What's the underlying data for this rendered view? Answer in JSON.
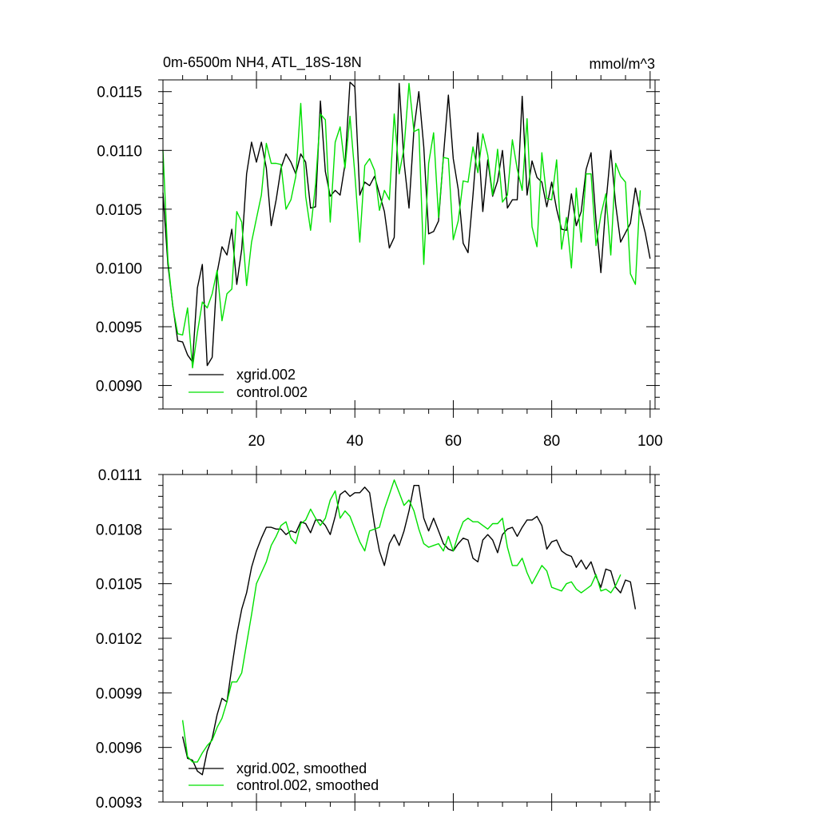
{
  "chart_data": [
    {
      "type": "line",
      "title": "0m-6500m NH4, ATL_18S-18N",
      "units": "mmol/m^3",
      "xlabel": "",
      "ylabel": "",
      "xlim": [
        1,
        101
      ],
      "ylim": [
        0.0088,
        0.0116
      ],
      "xticks": [
        20,
        40,
        60,
        80,
        100
      ],
      "xtick_labels": [
        "20",
        "40",
        "60",
        "80",
        "100"
      ],
      "yticks": [
        0.009,
        0.0095,
        0.01,
        0.0105,
        0.011,
        0.0115
      ],
      "ytick_labels": [
        "0.0090",
        "0.0095",
        "0.0100",
        "0.0105",
        "0.0110",
        "0.0115"
      ],
      "legend_position": "bottom-left",
      "series": [
        {
          "name": "xgrid.002",
          "color": "#000000",
          "x_start": 1,
          "values": [
            0.01064,
            0.01003,
            0.00968,
            0.00938,
            0.00937,
            0.00926,
            0.0092,
            0.00983,
            0.01003,
            0.00917,
            0.00924,
            0.00996,
            0.01018,
            0.01011,
            0.01033,
            0.00986,
            0.01016,
            0.0108,
            0.01107,
            0.0109,
            0.01107,
            0.01085,
            0.01036,
            0.01058,
            0.01085,
            0.01097,
            0.0109,
            0.0108,
            0.01097,
            0.0109,
            0.01051,
            0.01052,
            0.01142,
            0.01082,
            0.01061,
            0.01066,
            0.01062,
            0.01088,
            0.01158,
            0.01154,
            0.01062,
            0.01073,
            0.0107,
            0.01078,
            0.01063,
            0.01048,
            0.01017,
            0.01026,
            0.01157,
            0.0109,
            0.01051,
            0.01118,
            0.0115,
            0.01103,
            0.01029,
            0.01031,
            0.0104,
            0.01095,
            0.01147,
            0.01093,
            0.01067,
            0.01021,
            0.01013,
            0.01062,
            0.01115,
            0.01048,
            0.01092,
            0.01061,
            0.01074,
            0.011,
            0.01051,
            0.01058,
            0.01058,
            0.01146,
            0.01062,
            0.01091,
            0.01077,
            0.01073,
            0.01052,
            0.01073,
            0.0105,
            0.01033,
            0.01032,
            0.01063,
            0.01036,
            0.01048,
            0.01084,
            0.01098,
            0.0104,
            0.00996,
            0.01054,
            0.011,
            0.01054,
            0.01022,
            0.0103,
            0.01038,
            0.01068,
            0.01047,
            0.0103,
            0.01008
          ],
          "dash": "solid"
        },
        {
          "name": "control.002",
          "color": "#00e000",
          "x_start": 1,
          "values": [
            0.011,
            0.01007,
            0.00967,
            0.00944,
            0.00943,
            0.00966,
            0.00915,
            0.00945,
            0.00971,
            0.00966,
            0.00978,
            0.00998,
            0.00955,
            0.00978,
            0.00982,
            0.01048,
            0.01039,
            0.00985,
            0.01022,
            0.01042,
            0.01062,
            0.01106,
            0.01089,
            0.01089,
            0.01088,
            0.0105,
            0.01058,
            0.01078,
            0.0114,
            0.01061,
            0.01032,
            0.01071,
            0.01131,
            0.01126,
            0.01039,
            0.01107,
            0.0112,
            0.01085,
            0.01129,
            0.0108,
            0.01022,
            0.01087,
            0.01093,
            0.01083,
            0.01049,
            0.01066,
            0.01058,
            0.01131,
            0.0108,
            0.01102,
            0.01157,
            0.01116,
            0.01118,
            0.01003,
            0.01089,
            0.01115,
            0.01043,
            0.01094,
            0.01093,
            0.01024,
            0.0104,
            0.01074,
            0.01073,
            0.01103,
            0.01081,
            0.01114,
            0.01096,
            0.01062,
            0.01101,
            0.01056,
            0.01062,
            0.01109,
            0.01084,
            0.01066,
            0.01127,
            0.01035,
            0.01018,
            0.01098,
            0.01059,
            0.01058,
            0.01092,
            0.01016,
            0.01043,
            0.01,
            0.01068,
            0.01022,
            0.0108,
            0.0108,
            0.01019,
            0.01045,
            0.01063,
            0.01011,
            0.01089,
            0.01078,
            0.01073,
            0.00995,
            0.00986,
            0.01066
          ],
          "dash": "solid"
        }
      ],
      "legend": [
        "xgrid.002",
        "control.002"
      ]
    },
    {
      "type": "line",
      "title": "",
      "xlabel": "",
      "ylabel": "",
      "xlim": [
        1,
        101
      ],
      "ylim": [
        0.0093,
        0.0111
      ],
      "xticks": [
        20,
        40,
        60,
        80,
        100
      ],
      "xtick_labels": [],
      "yticks": [
        0.0093,
        0.0096,
        0.0099,
        0.0102,
        0.0105,
        0.0108,
        0.0111
      ],
      "ytick_labels": [
        "0.0093",
        "0.0096",
        "0.0099",
        "0.0102",
        "0.0105",
        "0.0108",
        "0.0111"
      ],
      "legend_position": "bottom-left",
      "series": [
        {
          "name": "xgrid.002, smoothed",
          "color": "#000000",
          "x_start": 5,
          "values": [
            0.00966,
            0.00954,
            0.00953,
            0.00947,
            0.00945,
            0.00958,
            0.00965,
            0.00978,
            0.00987,
            0.00985,
            0.01004,
            0.01022,
            0.01036,
            0.01045,
            0.01059,
            0.01068,
            0.01075,
            0.01081,
            0.01081,
            0.0108,
            0.0108,
            0.01077,
            0.01079,
            0.01078,
            0.01084,
            0.01083,
            0.01078,
            0.01085,
            0.01085,
            0.01082,
            0.01077,
            0.01087,
            0.01099,
            0.01101,
            0.01098,
            0.011,
            0.011,
            0.01103,
            0.011,
            0.01082,
            0.01068,
            0.0106,
            0.01072,
            0.01077,
            0.01071,
            0.01079,
            0.0109,
            0.01104,
            0.01104,
            0.01086,
            0.01079,
            0.01086,
            0.01079,
            0.01072,
            0.01069,
            0.01068,
            0.01072,
            0.01075,
            0.01074,
            0.01064,
            0.01062,
            0.01074,
            0.01077,
            0.01074,
            0.01067,
            0.01077,
            0.0108,
            0.01081,
            0.01076,
            0.01081,
            0.01085,
            0.01085,
            0.01087,
            0.01082,
            0.01069,
            0.01073,
            0.01074,
            0.01068,
            0.01066,
            0.01065,
            0.01059,
            0.01063,
            0.01058,
            0.01062,
            0.01054,
            0.01048,
            0.01058,
            0.01057,
            0.01048,
            0.01045,
            0.01052,
            0.01051,
            0.01036
          ]
        },
        {
          "name": "control.002, smoothed",
          "color": "#00e000",
          "x_start": 5,
          "values": [
            0.00975,
            0.00955,
            0.00952,
            0.00952,
            0.00957,
            0.00961,
            0.00964,
            0.00971,
            0.00976,
            0.00985,
            0.00996,
            0.00996,
            0.01001,
            0.01017,
            0.01033,
            0.0105,
            0.01056,
            0.01062,
            0.01071,
            0.01076,
            0.01082,
            0.01084,
            0.01075,
            0.01072,
            0.01083,
            0.01085,
            0.01091,
            0.01086,
            0.01082,
            0.01086,
            0.01096,
            0.01101,
            0.01086,
            0.0109,
            0.01087,
            0.0108,
            0.01073,
            0.01068,
            0.01079,
            0.0108,
            0.01081,
            0.01091,
            0.01099,
            0.01107,
            0.011,
            0.01093,
            0.01096,
            0.0109,
            0.0108,
            0.01072,
            0.0107,
            0.01071,
            0.01072,
            0.01068,
            0.01076,
            0.01068,
            0.01077,
            0.01084,
            0.01086,
            0.01084,
            0.01084,
            0.01082,
            0.0108,
            0.01083,
            0.01083,
            0.01086,
            0.0107,
            0.0106,
            0.0106,
            0.01064,
            0.01056,
            0.0105,
            0.01055,
            0.0106,
            0.01057,
            0.01048,
            0.01047,
            0.01046,
            0.0105,
            0.01051,
            0.01047,
            0.01045,
            0.01047,
            0.01049,
            0.01055,
            0.01046,
            0.01047,
            0.01045,
            0.01049,
            0.01055
          ]
        }
      ],
      "legend": [
        "xgrid.002, smoothed",
        "control.002, smoothed"
      ]
    }
  ]
}
